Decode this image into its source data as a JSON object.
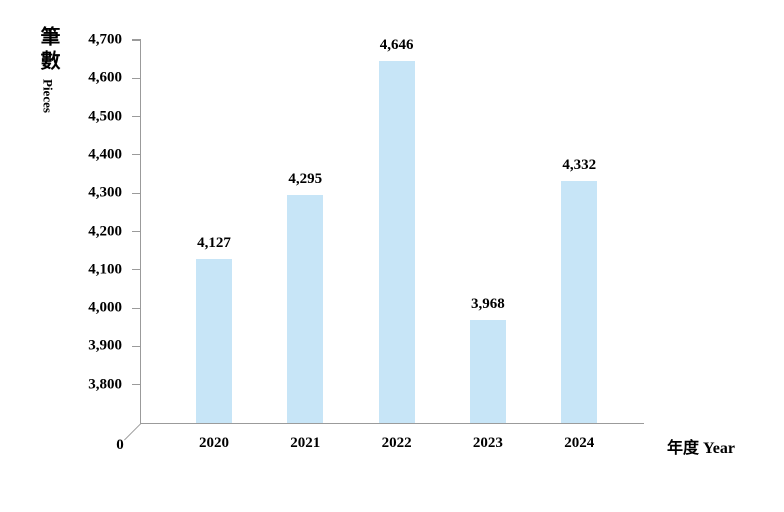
{
  "chart_data": {
    "type": "bar",
    "title": "",
    "categories": [
      "2020",
      "2021",
      "2022",
      "2023",
      "2024"
    ],
    "values": [
      4127,
      4295,
      4646,
      3968,
      4332
    ],
    "data_labels": [
      "4,127",
      "4,295",
      "4,646",
      "3,968",
      "4,332"
    ],
    "y_axis": {
      "title_zh": "筆數",
      "title_en": "Pieces",
      "tick_labels": [
        "4,700",
        "4,600",
        "4,500",
        "4,400",
        "4,300",
        "4,200",
        "4,100",
        "4,000",
        "3,900",
        "3,800"
      ],
      "tick_values": [
        4700,
        4600,
        4500,
        4400,
        4300,
        4200,
        4100,
        4000,
        3900,
        3800
      ],
      "origin_label": "0",
      "ylim": [
        3700,
        4700
      ]
    },
    "x_axis": {
      "title": "年度 Year"
    },
    "legend": {
      "show": false
    },
    "grid": false,
    "colors": {
      "bar_fill": "#C7E5F7",
      "axis_line": "#9B9B9B",
      "text": "#000000"
    }
  }
}
